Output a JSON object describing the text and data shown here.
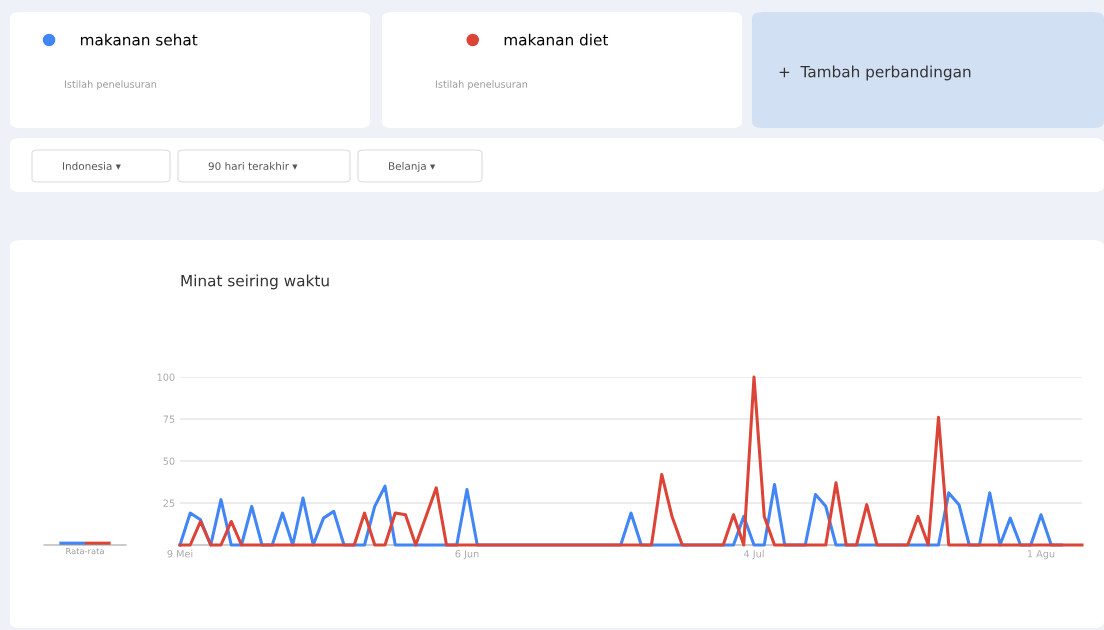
{
  "chart_data": [
    {
      "type": "line",
      "title": "Minat seiring waktu",
      "legend": "top left",
      "grid": "y",
      "marker": "none",
      "line_style": "solid",
      "annotations": [
        "Istilah penelusuran",
        "Istilah penelusuran",
        "+  Tambah perbandingan",
        "Indonesia ▾",
        "90 hari terakhir ▾",
        "Belanja ▾"
      ],
      "categories": [
        "9 Mei",
        null,
        null,
        null,
        null,
        null,
        null,
        null,
        null,
        null,
        null,
        null,
        null,
        null,
        null,
        null,
        null,
        null,
        null,
        null,
        null,
        null,
        null,
        null,
        null,
        null,
        null,
        null,
        "6 Jun",
        null,
        null,
        null,
        null,
        null,
        null,
        null,
        null,
        null,
        null,
        null,
        null,
        null,
        null,
        null,
        null,
        null,
        null,
        null,
        null,
        null,
        null,
        null,
        null,
        null,
        null,
        null,
        "4 Jul",
        null,
        null,
        null,
        null,
        null,
        null,
        null,
        null,
        null,
        null,
        null,
        null,
        null,
        null,
        null,
        null,
        null,
        null,
        null,
        null,
        null,
        null,
        null,
        null,
        null,
        null,
        null,
        "1 Agu",
        null,
        null,
        null,
        null
      ],
      "ylim": [
        0,
        100
      ],
      "yticks": [
        25,
        50,
        75,
        100
      ],
      "series": [
        {
          "name": "makanan sehat",
          "color": "#4285f4",
          "values": [
            0,
            19,
            15,
            0,
            27,
            0,
            0,
            23,
            0,
            0,
            19,
            0,
            28,
            0,
            16,
            20,
            0,
            0,
            0,
            23,
            35,
            0,
            0,
            0,
            0,
            0,
            0,
            0,
            33,
            0,
            0,
            0,
            0,
            0,
            0,
            0,
            0,
            0,
            0,
            0,
            0,
            0,
            0,
            0,
            19,
            0,
            0,
            0,
            0,
            0,
            0,
            0,
            0,
            0,
            0,
            17,
            0,
            0,
            36,
            0,
            0,
            0,
            30,
            23,
            0,
            0,
            0,
            0,
            0,
            0,
            0,
            0,
            0,
            0,
            0,
            31,
            24,
            0,
            0,
            31,
            0,
            16,
            0,
            0,
            18,
            0,
            0,
            null,
            null
          ]
        },
        {
          "name": "makanan diet",
          "color": "#db4437",
          "values": [
            0,
            0,
            14,
            0,
            0,
            14,
            0,
            0,
            0,
            0,
            0,
            0,
            0,
            0,
            0,
            0,
            0,
            0,
            19,
            0,
            0,
            19,
            18,
            0,
            17,
            34,
            0,
            0,
            0,
            0,
            0,
            0,
            0,
            0,
            0,
            0,
            0,
            0,
            0,
            0,
            0,
            0,
            0,
            0,
            0,
            0,
            0,
            42,
            17,
            0,
            0,
            0,
            0,
            0,
            18,
            0,
            100,
            17,
            0,
            0,
            0,
            0,
            0,
            0,
            37,
            0,
            0,
            24,
            0,
            0,
            0,
            0,
            17,
            0,
            76,
            0,
            0,
            0,
            0,
            0,
            0,
            0,
            0,
            0,
            0,
            0,
            0,
            0,
            0
          ]
        }
      ]
    },
    {
      "type": "bar",
      "categories": [
        null,
        null
      ],
      "values": [
        2,
        2
      ],
      "colors": [
        "#4285f4",
        "#db4437"
      ],
      "ylim": [
        0,
        100
      ],
      "xlabel": "Rata-rata",
      "tick_labels": false
    }
  ]
}
